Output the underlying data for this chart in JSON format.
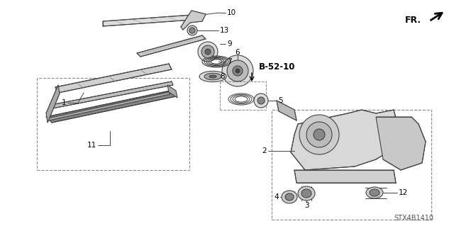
{
  "bg_color": "#ffffff",
  "line_color": "#444444",
  "dark_color": "#222222",
  "label_color": "#000000",
  "bold_label": "B-52-10",
  "diagram_code": "STX4B1410",
  "fr_label": "FR.",
  "label_fs": 7.5,
  "bold_fs": 8.5,
  "code_fs": 7,
  "fr_fs": 9
}
